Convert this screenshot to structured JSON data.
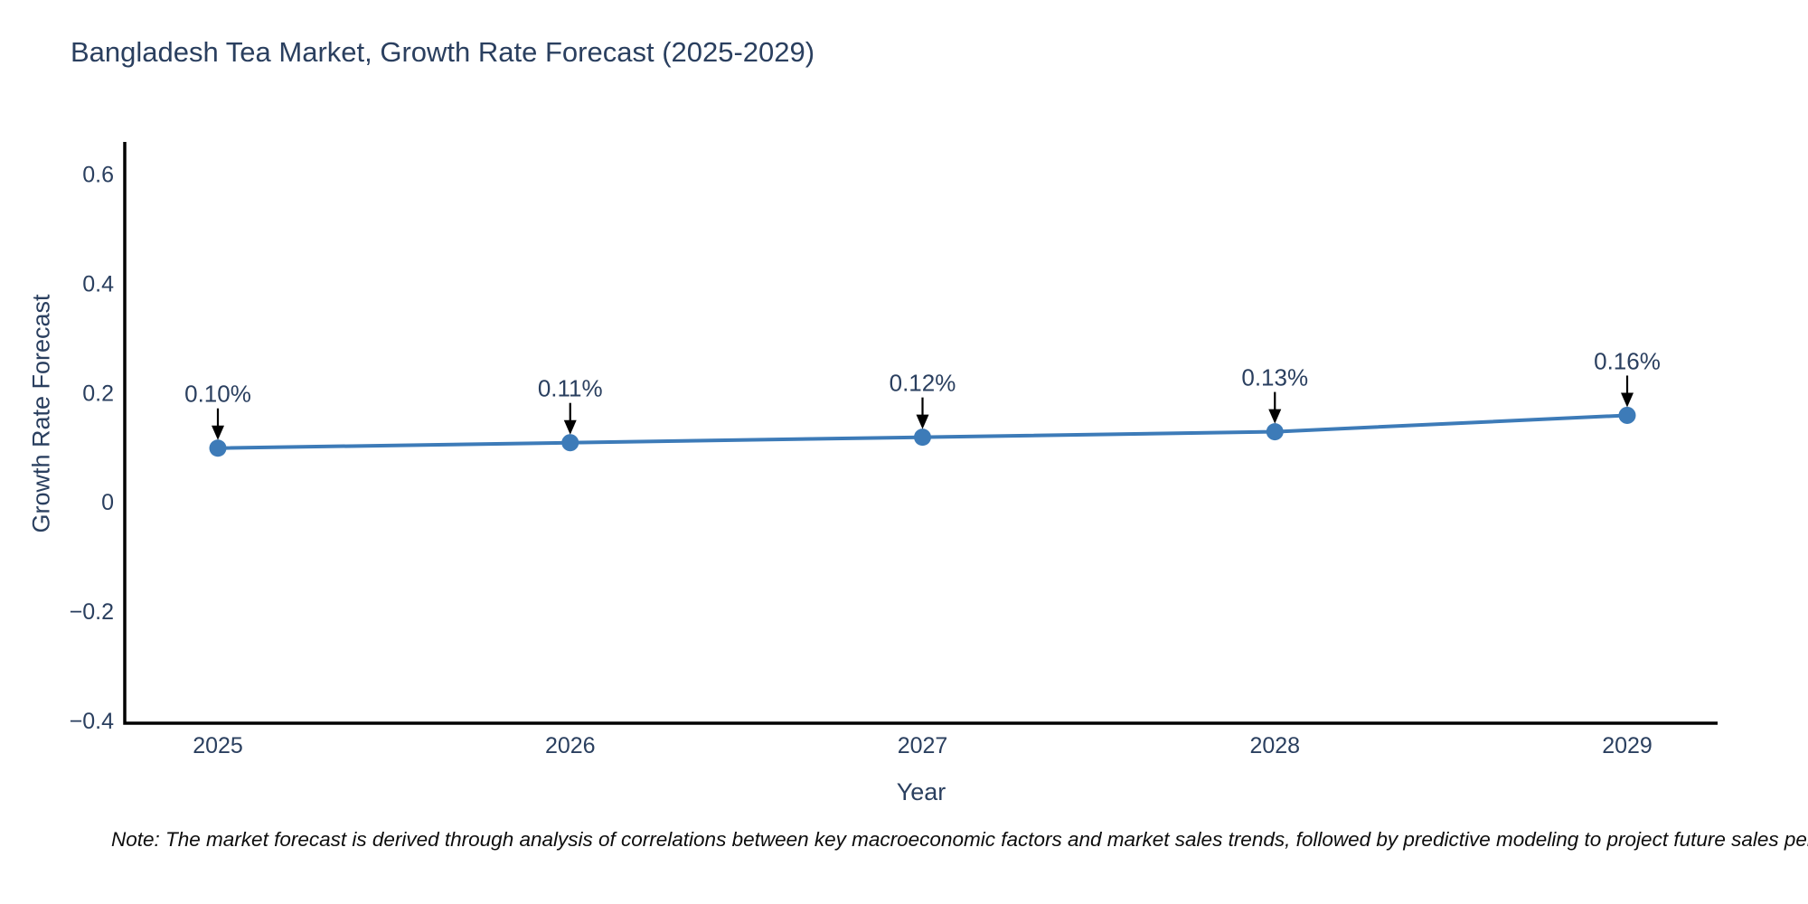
{
  "title": "Bangladesh Tea Market, Growth Rate Forecast (2025-2029)",
  "note": "Note: The market forecast is derived through analysis of correlations between key macroeconomic factors and market sales trends, followed by predictive modeling to project future sales performance.",
  "colors": {
    "series_line": "#3d7bb8",
    "marker": "#3d7bb8",
    "axis_line": "#000000",
    "text": "#2a3f5f",
    "arrow": "#000000",
    "background": "#ffffff"
  },
  "chart_data": {
    "type": "line",
    "title": "Bangladesh Tea Market, Growth Rate Forecast (2025-2029)",
    "xlabel": "Year",
    "ylabel": "Growth Rate Forecast",
    "x": [
      2025,
      2026,
      2027,
      2028,
      2029
    ],
    "y": [
      0.1,
      0.11,
      0.12,
      0.13,
      0.16
    ],
    "point_labels": [
      "0.10%",
      "0.11%",
      "0.12%",
      "0.13%",
      "0.16%"
    ],
    "xtick_labels": [
      "2025",
      "2026",
      "2027",
      "2028",
      "2029"
    ],
    "ytick_values": [
      0.6,
      0.4,
      0.2,
      0,
      -0.2,
      -0.4
    ],
    "ytick_labels": [
      "0.6",
      "0.4",
      "0.2",
      "0",
      "−0.2",
      "−0.4"
    ],
    "ylim": [
      -0.403,
      0.66
    ],
    "grid": false,
    "legend": false,
    "markers": true,
    "annotations_have_arrows": true
  }
}
